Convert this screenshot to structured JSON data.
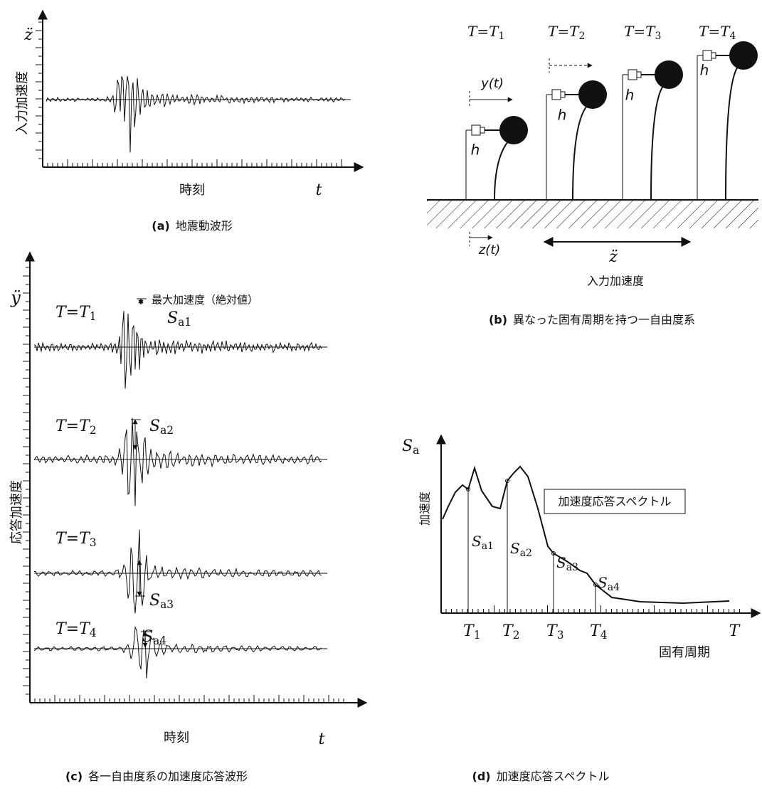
{
  "panel_a": {
    "y_symbol": "z̈",
    "y_label": "入力加速度",
    "x_label": "時刻",
    "x_symbol": "t",
    "caption": {
      "tag": "(a)",
      "text": "地震動波形"
    }
  },
  "panel_b": {
    "periods": [
      {
        "base": "T=T",
        "sub": "1"
      },
      {
        "base": "T=T",
        "sub": "2"
      },
      {
        "base": "T=T",
        "sub": "3"
      },
      {
        "base": "T=T",
        "sub": "4"
      }
    ],
    "y_label": "y(t)",
    "h_labels": [
      "h",
      "h",
      "h",
      "h"
    ],
    "z_label": "z(t)",
    "z_symbol": "z̈",
    "input_label": "入力加速度",
    "caption": {
      "tag": "(b)",
      "text": "異なった固有周期を持つ一自由度系"
    }
  },
  "panel_c": {
    "y_symbol": "ÿ",
    "y_label": "応答加速度",
    "periods": [
      {
        "base": "T=T",
        "sub": "1"
      },
      {
        "base": "T=T",
        "sub": "2"
      },
      {
        "base": "T=T",
        "sub": "3"
      },
      {
        "base": "T=T",
        "sub": "4"
      }
    ],
    "max_label": "最大加速度（絶対値）",
    "sa": [
      {
        "base": "S",
        "sub": "a1"
      },
      {
        "base": "S",
        "sub": "a2"
      },
      {
        "base": "S",
        "sub": "a3"
      },
      {
        "base": "S",
        "sub": "a4"
      }
    ],
    "x_label": "時刻",
    "x_symbol": "t",
    "caption": {
      "tag": "(c)",
      "text": "各一自由度系の加速度応答波形"
    }
  },
  "panel_d": {
    "y_symbol": {
      "base": "S",
      "sub": "a"
    },
    "y_label": "加速度",
    "legend": "加速度応答スペクトル",
    "sa": [
      {
        "base": "S",
        "sub": "a1"
      },
      {
        "base": "S",
        "sub": "a2"
      },
      {
        "base": "S",
        "sub": "a3"
      },
      {
        "base": "S",
        "sub": "a4"
      }
    ],
    "periods": [
      {
        "base": "T",
        "sub": "1"
      },
      {
        "base": "T",
        "sub": "2"
      },
      {
        "base": "T",
        "sub": "3"
      },
      {
        "base": "T",
        "sub": "4"
      }
    ],
    "x_symbol": "T",
    "x_label": "固有周期",
    "caption": {
      "tag": "(d)",
      "text": "加速度応答スペクトル"
    }
  }
}
